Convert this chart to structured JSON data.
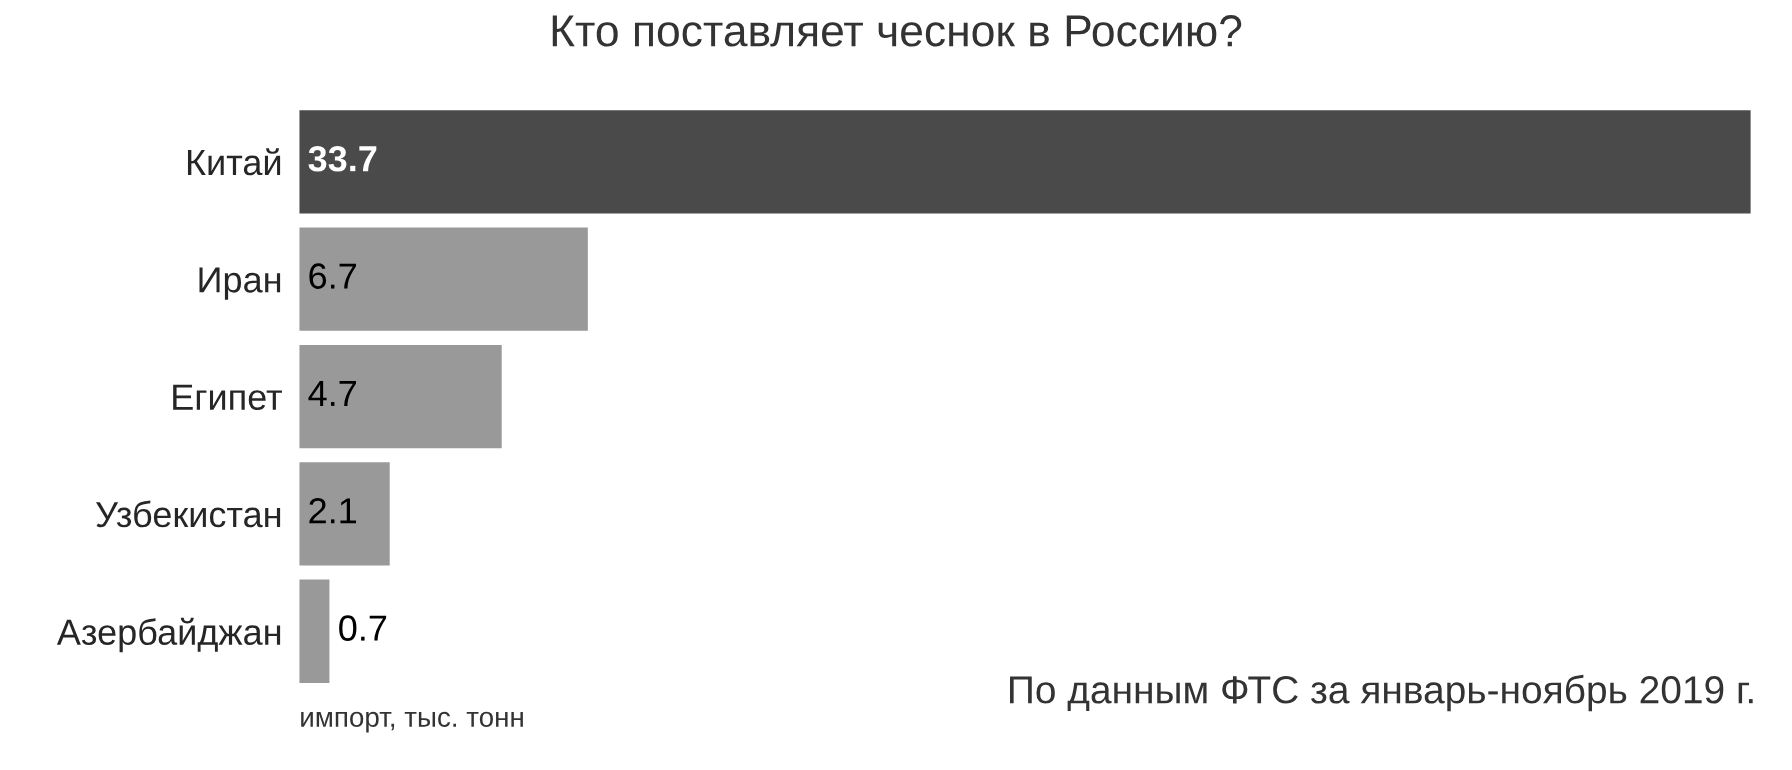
{
  "chart_data": {
    "type": "bar",
    "orientation": "horizontal",
    "title": "Кто поставляет чеснок в Россию?",
    "categories": [
      "Китай",
      "Иран",
      "Египет",
      "Узбекистан",
      "Азербайджан"
    ],
    "values": [
      33.7,
      6.7,
      4.7,
      2.1,
      0.7
    ],
    "colors": [
      "#4a4a4a",
      "#999999",
      "#999999",
      "#999999",
      "#999999"
    ],
    "data_labels": true,
    "xlabel": "импорт, тыс. тонн",
    "annotations": [
      "По данным ФТС за январь-ноябрь 2019 г."
    ],
    "grid": false,
    "legend": false
  }
}
